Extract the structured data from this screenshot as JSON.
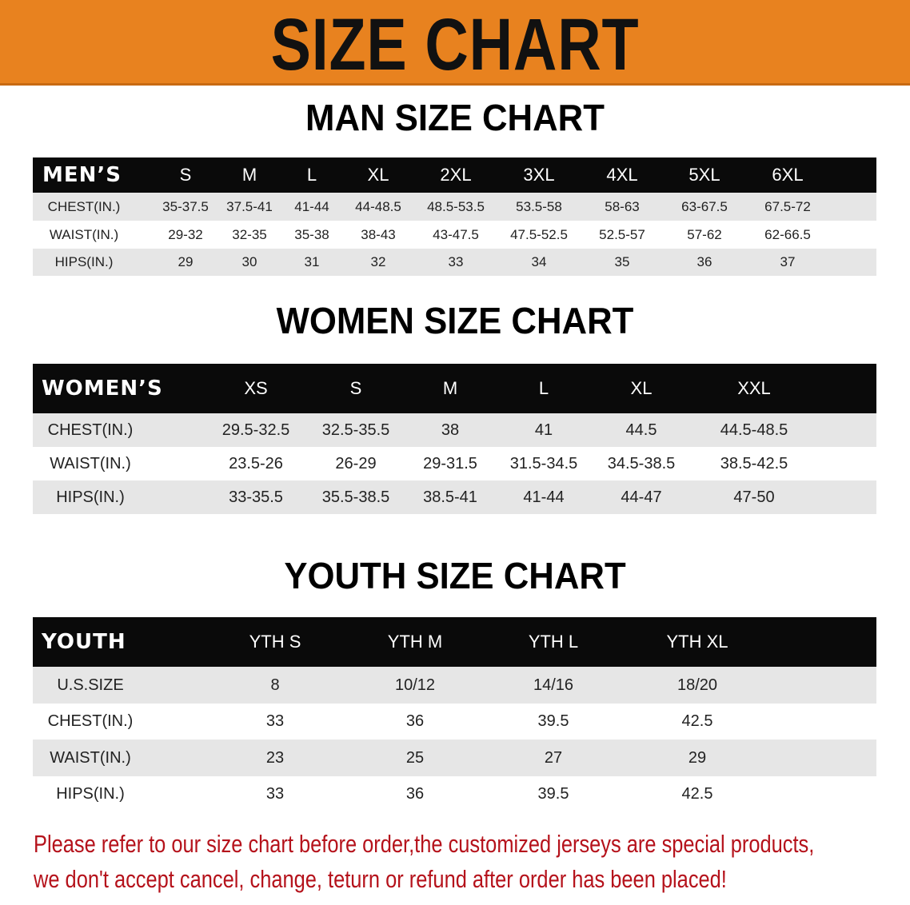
{
  "banner_title": "SIZE CHART",
  "men": {
    "title": "MAN SIZE CHART",
    "header_label": "MEN’S",
    "sizes": [
      "S",
      "M",
      "L",
      "XL",
      "2XL",
      "3XL",
      "4XL",
      "5XL",
      "6XL"
    ],
    "rows": [
      {
        "label": "CHEST(IN.)",
        "values": [
          "35-37.5",
          "37.5-41",
          "41-44",
          "44-48.5",
          "48.5-53.5",
          "53.5-58",
          "58-63",
          "63-67.5",
          "67.5-72"
        ]
      },
      {
        "label": "WAIST(IN.)",
        "values": [
          "29-32",
          "32-35",
          "35-38",
          "38-43",
          "43-47.5",
          "47.5-52.5",
          "52.5-57",
          "57-62",
          "62-66.5"
        ]
      },
      {
        "label": "HIPS(IN.)",
        "values": [
          "29",
          "30",
          "31",
          "32",
          "33",
          "34",
          "35",
          "36",
          "37"
        ]
      }
    ]
  },
  "women": {
    "title": "WOMEN SIZE CHART",
    "header_label": "WOMEN’S",
    "sizes": [
      "XS",
      "S",
      "M",
      "L",
      "XL",
      "XXL"
    ],
    "rows": [
      {
        "label": "CHEST(IN.)",
        "values": [
          "29.5-32.5",
          "32.5-35.5",
          "38",
          "41",
          "44.5",
          "44.5-48.5"
        ]
      },
      {
        "label": "WAIST(IN.)",
        "values": [
          "23.5-26",
          "26-29",
          "29-31.5",
          "31.5-34.5",
          "34.5-38.5",
          "38.5-42.5"
        ]
      },
      {
        "label": "HIPS(IN.)",
        "values": [
          "33-35.5",
          "35.5-38.5",
          "38.5-41",
          "41-44",
          "44-47",
          "47-50"
        ]
      }
    ]
  },
  "youth": {
    "title": "YOUTH SIZE CHART",
    "header_label": "YOUTH",
    "sizes": [
      "YTH S",
      "YTH M",
      "YTH L",
      "YTH XL"
    ],
    "rows": [
      {
        "label": "U.S.SIZE",
        "values": [
          "8",
          "10/12",
          "14/16",
          "18/20"
        ]
      },
      {
        "label": "CHEST(IN.)",
        "values": [
          "33",
          "36",
          "39.5",
          "42.5"
        ]
      },
      {
        "label": "WAIST(IN.)",
        "values": [
          "23",
          "25",
          "27",
          "29"
        ]
      },
      {
        "label": "HIPS(IN.)",
        "values": [
          "33",
          "36",
          "39.5",
          "42.5"
        ]
      }
    ]
  },
  "footer": {
    "line1": "Please refer to our size chart before order,the customized jerseys are special products,",
    "line2": "we don't accept cancel, change, teturn or refund after order has been placed!"
  },
  "colors": {
    "banner": "#e8821f",
    "header": "#0a0a0a",
    "stripe": "#e6e6e6",
    "footer_text": "#b5121b"
  }
}
